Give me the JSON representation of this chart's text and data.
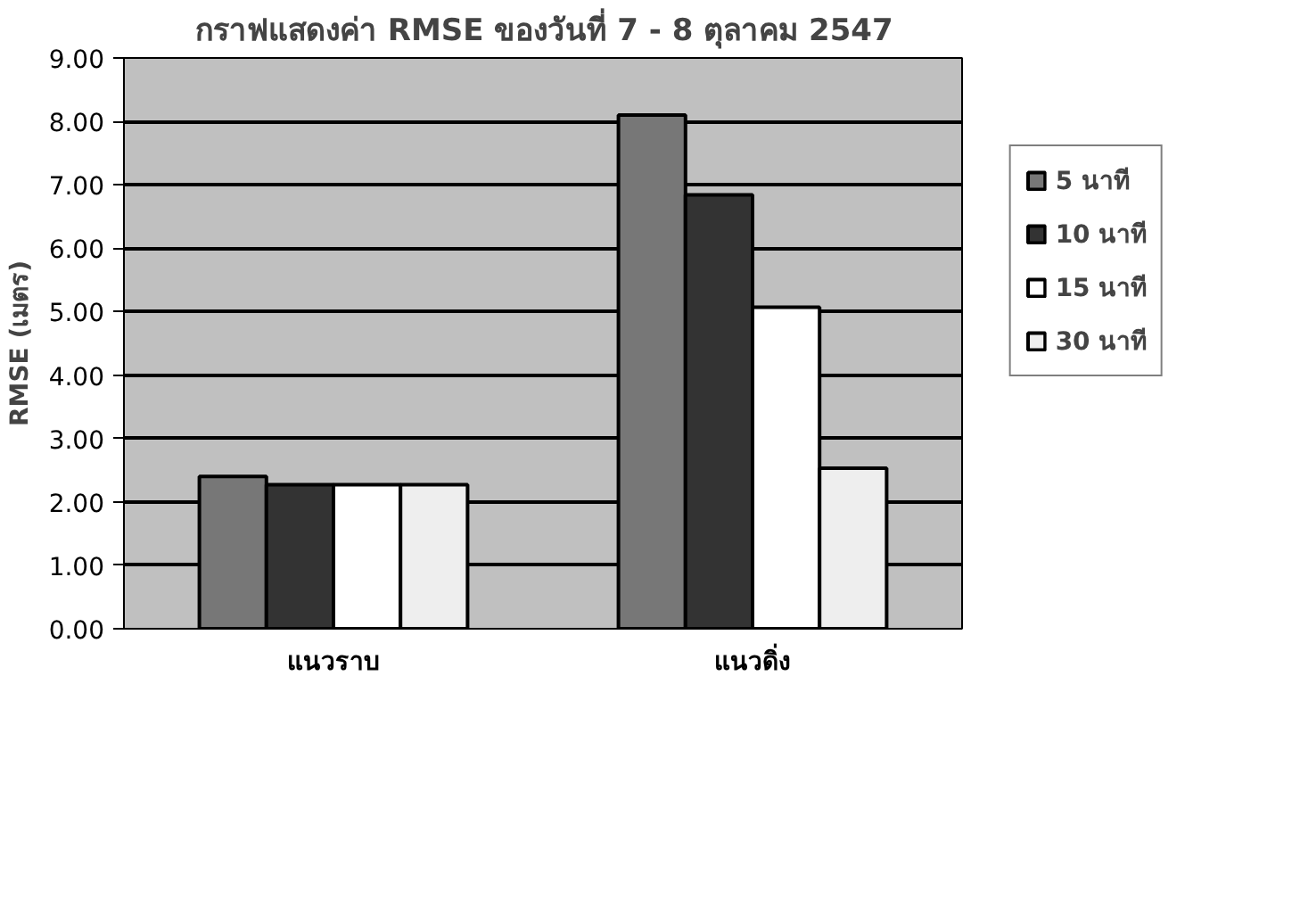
{
  "chart_data": {
    "type": "bar",
    "title": "กราฟแสดงค่า RMSE ของวันที่ 7 - 8 ตุลาคม 2547",
    "ylabel": "RMSE (เมตร)",
    "categories": [
      "แนวราบ",
      "แนวดิ่ง"
    ],
    "series": [
      {
        "name": "5 นาที",
        "color": "#777777",
        "values": [
          2.4,
          8.1
        ]
      },
      {
        "name": "10 นาที",
        "color": "#333333",
        "values": [
          2.27,
          6.84
        ]
      },
      {
        "name": "15 นาที",
        "color": "#ffffff",
        "values": [
          2.27,
          5.07
        ]
      },
      {
        "name": "30 นาที",
        "color": "#eeeeee",
        "values": [
          2.27,
          2.53
        ]
      }
    ],
    "ylim": [
      0,
      9
    ],
    "yticks": [
      {
        "value": 0,
        "label": "0.00"
      },
      {
        "value": 1,
        "label": "1.00"
      },
      {
        "value": 2,
        "label": "2.00"
      },
      {
        "value": 3,
        "label": "3.00"
      },
      {
        "value": 4,
        "label": "4.00"
      },
      {
        "value": 5,
        "label": "5.00"
      },
      {
        "value": 6,
        "label": "6.00"
      },
      {
        "value": 7,
        "label": "7.00"
      },
      {
        "value": 8,
        "label": "8.00"
      },
      {
        "value": 9,
        "label": "9.00"
      }
    ],
    "grid": "y",
    "legend": "right"
  }
}
